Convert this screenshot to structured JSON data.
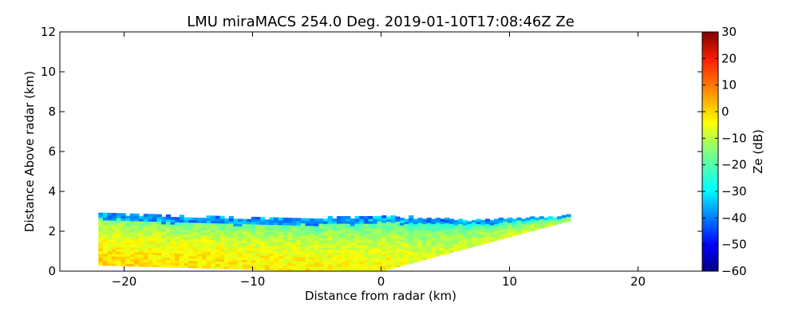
{
  "chart_data": {
    "type": "heatmap",
    "title": "LMU miraMACS 254.0 Deg. 2019-01-10T17:08:46Z  Ze",
    "xlabel": "Distance from radar (km)",
    "ylabel": "Distance Above radar  (km)",
    "xlim": [
      -25,
      25
    ],
    "ylim": [
      0,
      12
    ],
    "x_ticks": [
      -20,
      -10,
      0,
      10,
      20
    ],
    "x_tick_labels": [
      "−20",
      "−10",
      "0",
      "10",
      "20"
    ],
    "y_ticks": [
      0,
      2,
      4,
      6,
      8,
      10,
      12
    ],
    "y_tick_labels": [
      "0",
      "2",
      "4",
      "6",
      "8",
      "10",
      "12"
    ],
    "grid": false,
    "colorbar": {
      "label": "Ze (dB)",
      "range": [
        -60,
        30
      ],
      "ticks": [
        30,
        20,
        10,
        0,
        -10,
        -20,
        -30,
        -40,
        -50,
        -60
      ],
      "tick_labels": [
        "30",
        "20",
        "10",
        "0",
        "−10",
        "−20",
        "−30",
        "−40",
        "−50",
        "−60"
      ],
      "colormap": "jet"
    },
    "echo_region": {
      "x_range": [
        -22,
        14.7
      ],
      "top_height_km": [
        2.9,
        2.65,
        2.6,
        2.7,
        2.5,
        2.7
      ],
      "top_height_x": [
        -22,
        -15,
        -5,
        0,
        8,
        14.7
      ],
      "bottom_edge": [
        [
          -22,
          0.3
        ],
        [
          -5,
          0.0
        ],
        [
          0,
          0.0
        ],
        [
          14.5,
          2.5
        ]
      ]
    },
    "colors": {
      "frame": "#000000",
      "background": "#ffffff"
    }
  }
}
